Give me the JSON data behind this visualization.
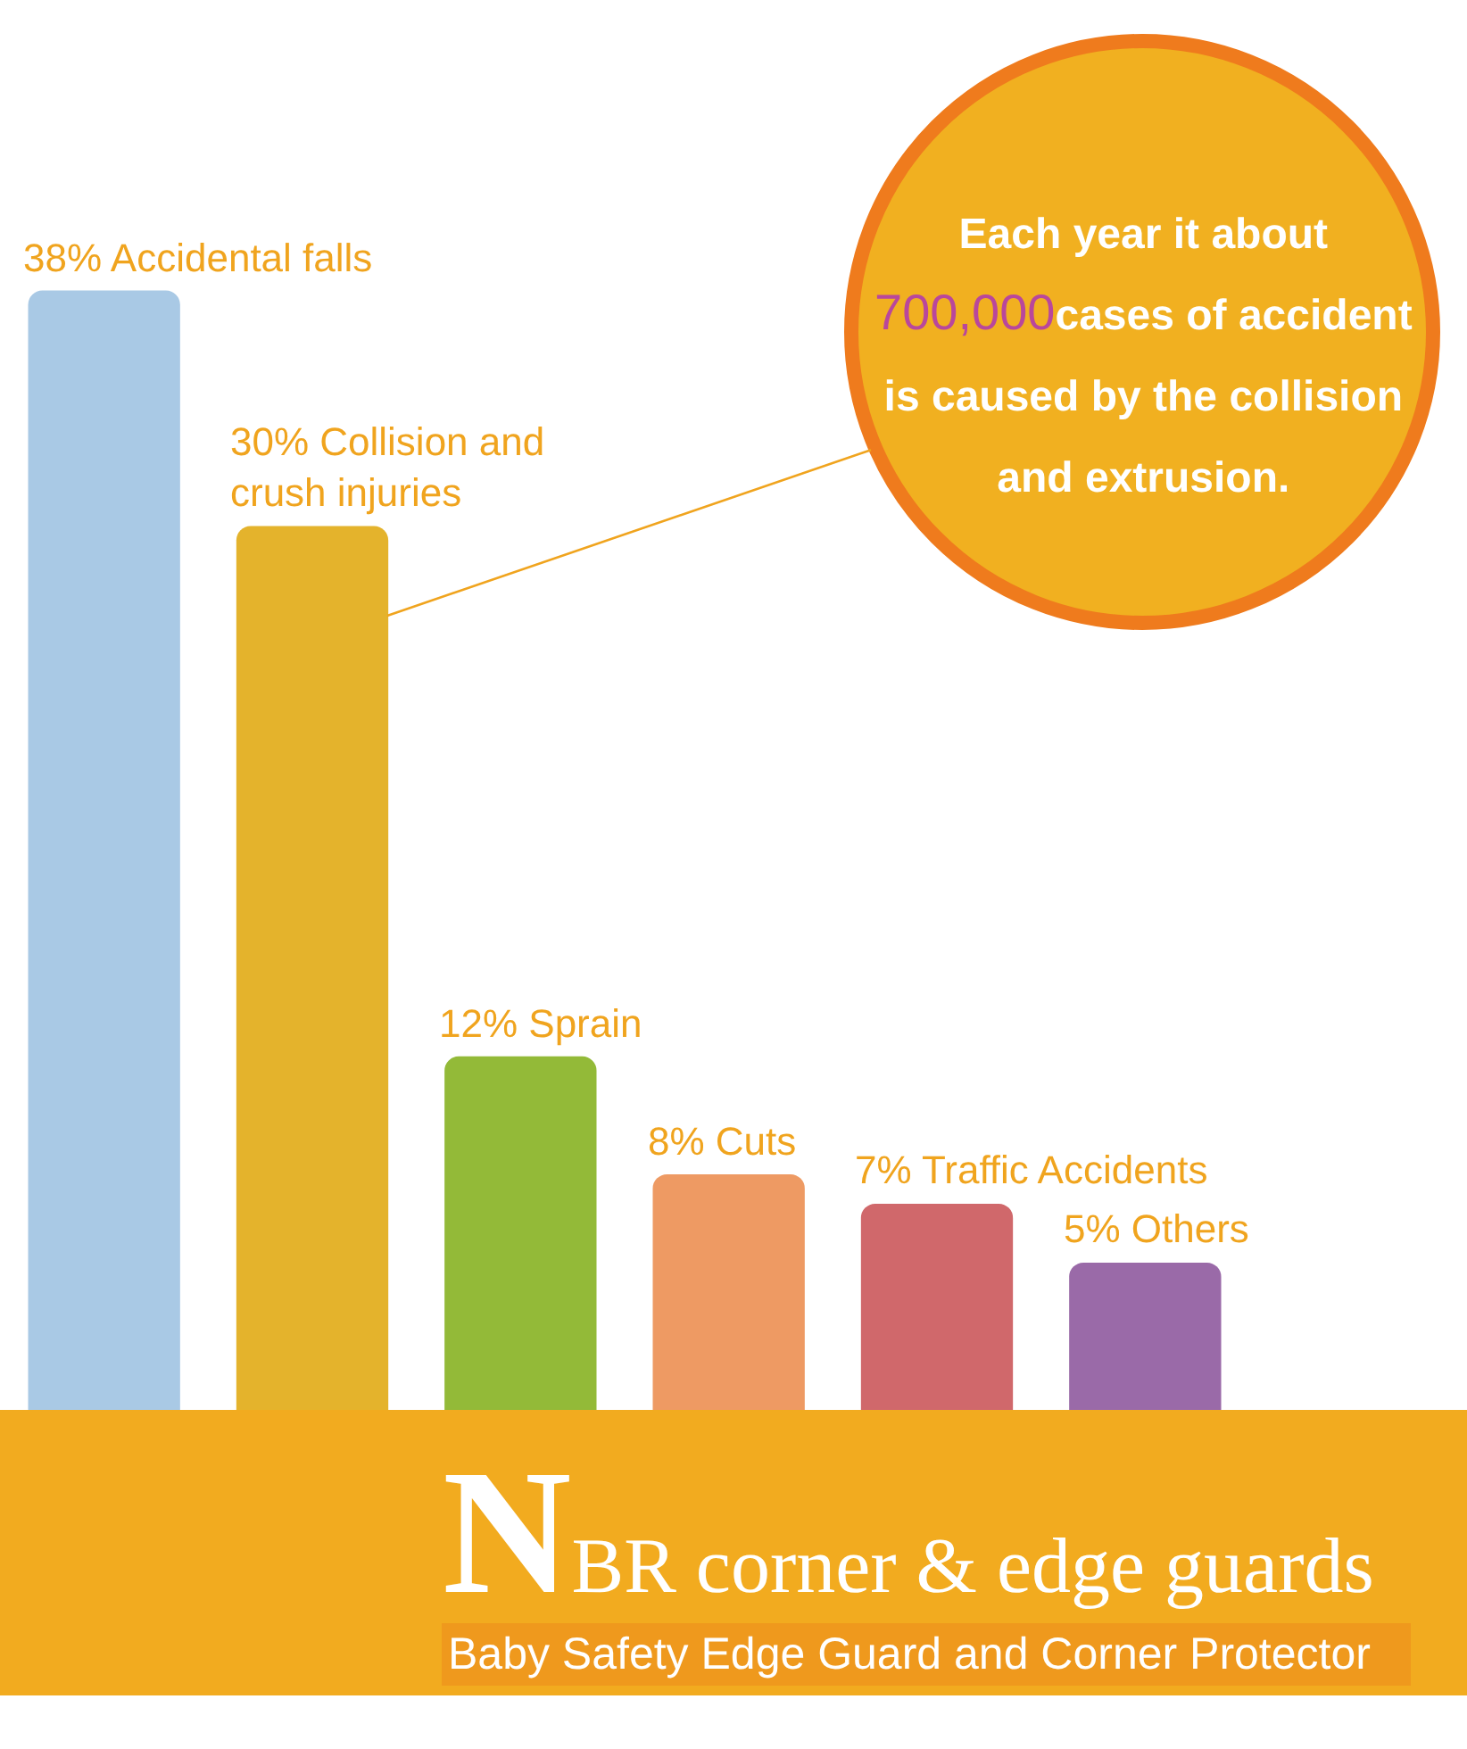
{
  "chart_data": {
    "type": "bar",
    "title": "NBR corner & edge guards",
    "subtitle": "Baby Safety Edge Guard and Corner Protector",
    "categories": [
      null,
      null,
      null,
      null,
      null,
      null
    ],
    "values": [
      38,
      30,
      12,
      8,
      7,
      5
    ],
    "value_labels": [
      "38% Accidental falls",
      "30% Collision and crush injuries",
      "12% Sprain",
      "8% Cuts",
      "7% Traffic Accidents",
      "5% Others"
    ],
    "colors": [
      "#a9c9e5",
      "#e4b32c",
      "#93ba38",
      "#ee9a63",
      "#d0686b",
      "#9a6aa8"
    ],
    "annotations": [
      "Each year it about 700,000cases of accident is caused by the collision and extrusion."
    ]
  }
}
